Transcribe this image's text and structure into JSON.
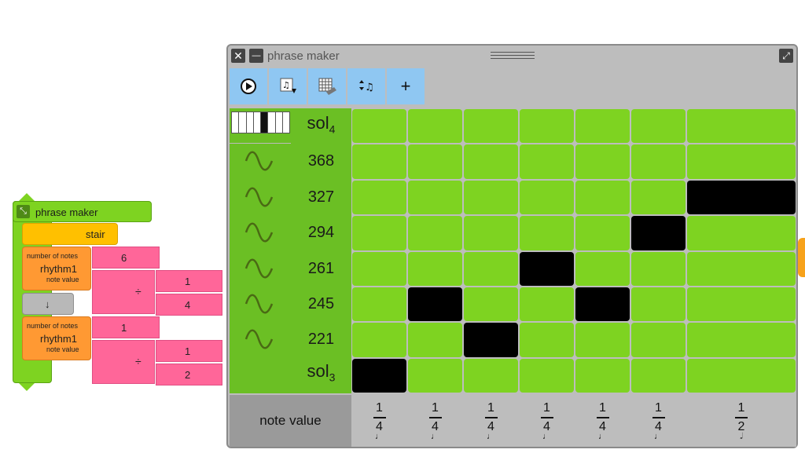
{
  "blocks": {
    "phrase_maker_label": "phrase maker",
    "stair_label": "stair",
    "rhythm1": {
      "label": "rhythm1",
      "number_of_notes_label": "number of notes",
      "note_value_label": "note value",
      "number_of_notes": "6",
      "numerator": "1",
      "denominator": "4",
      "divide_symbol": "÷"
    },
    "down_arrow": "↓",
    "rhythm2": {
      "label": "rhythm1",
      "number_of_notes_label": "number of notes",
      "note_value_label": "note value",
      "number_of_notes": "1",
      "numerator": "1",
      "denominator": "2",
      "divide_symbol": "÷"
    }
  },
  "window": {
    "title": "phrase maker",
    "close_glyph": "✕",
    "minimize_glyph": "—",
    "expand_glyph": "⤢"
  },
  "toolbar": {
    "buttons": [
      {
        "icon": "play-icon"
      },
      {
        "icon": "export-notes-icon"
      },
      {
        "icon": "erase-grid-icon"
      },
      {
        "icon": "sort-notes-icon"
      },
      {
        "icon": "add-icon",
        "glyph": "+"
      }
    ]
  },
  "rows": [
    {
      "label_base": "sol",
      "label_sub": "4",
      "icon": "keyboard-icon"
    },
    {
      "label": "368",
      "icon": "sine-wave-icon"
    },
    {
      "label": "327",
      "icon": "sine-wave-icon"
    },
    {
      "label": "294",
      "icon": "sine-wave-icon"
    },
    {
      "label": "261",
      "icon": "sine-wave-icon"
    },
    {
      "label": "245",
      "icon": "sine-wave-icon"
    },
    {
      "label": "221",
      "icon": "sine-wave-icon"
    },
    {
      "label_base": "sol",
      "label_sub": "3"
    }
  ],
  "grid": {
    "columns": 7,
    "active_cells": [
      {
        "row": 7,
        "col": 0
      },
      {
        "row": 5,
        "col": 1
      },
      {
        "row": 6,
        "col": 2
      },
      {
        "row": 4,
        "col": 3
      },
      {
        "row": 5,
        "col": 4
      },
      {
        "row": 3,
        "col": 5
      },
      {
        "row": 2,
        "col": 6
      }
    ],
    "cell_color": "#7ed321",
    "active_color": "#000000"
  },
  "note_values": {
    "label": "note value",
    "columns": [
      {
        "num": "1",
        "den": "4",
        "note": "♩"
      },
      {
        "num": "1",
        "den": "4",
        "note": "♩"
      },
      {
        "num": "1",
        "den": "4",
        "note": "♩"
      },
      {
        "num": "1",
        "den": "4",
        "note": "♩"
      },
      {
        "num": "1",
        "den": "4",
        "note": "♩"
      },
      {
        "num": "1",
        "den": "4",
        "note": "♩"
      },
      {
        "num": "1",
        "den": "2",
        "note": "𝅗𝅥"
      }
    ]
  }
}
